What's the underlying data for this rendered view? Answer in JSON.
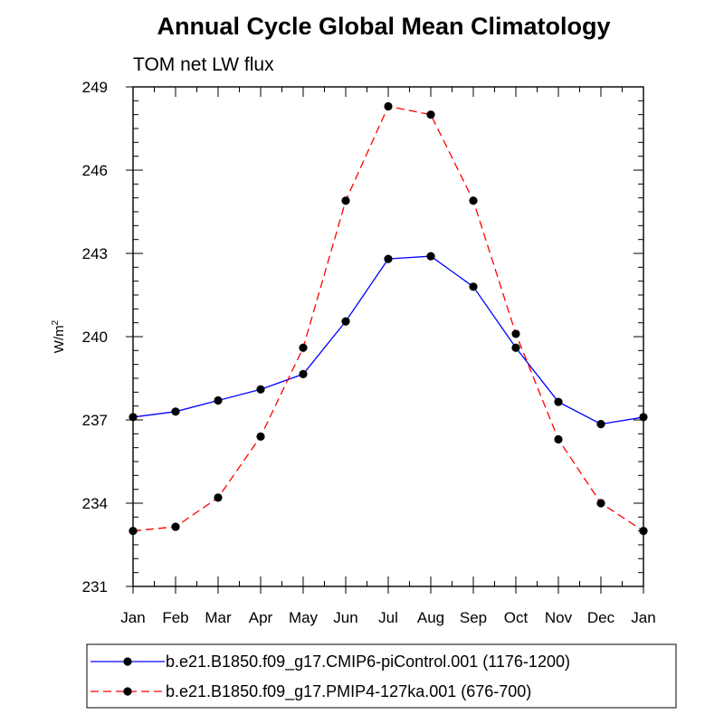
{
  "chart_data": {
    "type": "line",
    "title": "Annual Cycle Global Mean Climatology",
    "subtitle": "TOM net LW flux",
    "ylabel": "W/m",
    "ylabel_superscript": "2",
    "xlabel": "",
    "categories": [
      "Jan",
      "Feb",
      "Mar",
      "Apr",
      "May",
      "Jun",
      "Jul",
      "Aug",
      "Sep",
      "Oct",
      "Nov",
      "Dec",
      "Jan"
    ],
    "ylim": [
      231,
      249
    ],
    "yticks": [
      "231",
      "234",
      "237",
      "240",
      "243",
      "246",
      "249"
    ],
    "grid": false,
    "legend_position": "bottom",
    "series": [
      {
        "name": "b.e21.B1850.f09_g17.CMIP6-piControl.001 (1176-1200)",
        "color": "#0000ff",
        "line_style": "solid",
        "marker": "filled-circle",
        "values": [
          237.1,
          237.3,
          237.7,
          238.1,
          238.65,
          240.55,
          242.8,
          242.9,
          241.8,
          239.6,
          237.65,
          236.85,
          237.1
        ]
      },
      {
        "name": "b.e21.B1850.f09_g17.PMIP4-127ka.001 (676-700)",
        "color": "#ff0000",
        "line_style": "dashed",
        "marker": "filled-circle",
        "values": [
          233.0,
          233.15,
          234.2,
          236.4,
          239.6,
          244.9,
          248.3,
          248.0,
          244.9,
          240.1,
          236.3,
          234.0,
          233.0
        ]
      }
    ]
  }
}
